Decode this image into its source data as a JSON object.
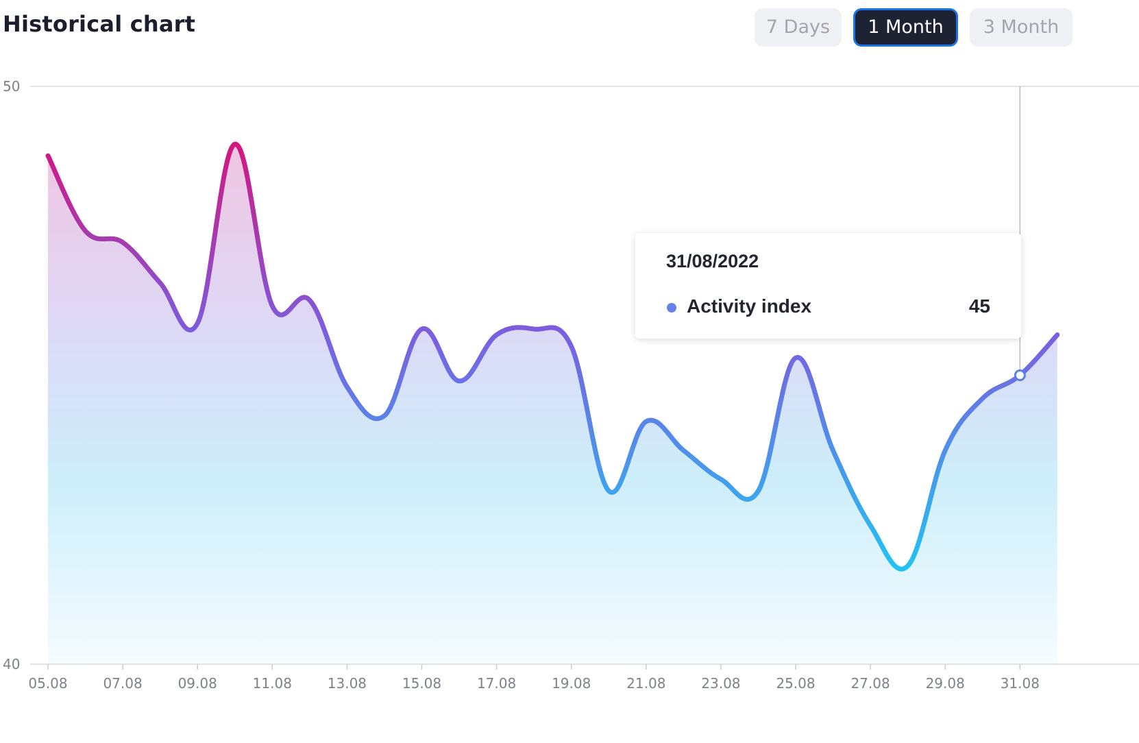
{
  "header": {
    "title": "Historical chart",
    "range_buttons": [
      {
        "label": "7 Days",
        "active": false
      },
      {
        "label": "1 Month",
        "active": true
      },
      {
        "label": "3 Month",
        "active": false
      }
    ]
  },
  "colors": {
    "line_start": "#d3167f",
    "line_mid": "#7a5fe0",
    "line_end": "#22c3f3",
    "button_active_bg": "#1d2333",
    "button_active_border": "#1a73e8"
  },
  "tooltip": {
    "date": "31/08/2022",
    "series_name": "Activity index",
    "value": "45"
  },
  "chart_data": {
    "type": "area",
    "title": "",
    "xlabel": "",
    "ylabel": "",
    "ylim": [
      40,
      50
    ],
    "y_ticks": [
      "50",
      "40"
    ],
    "x_tick_labels": [
      "05.08",
      "07.08",
      "09.08",
      "11.08",
      "13.08",
      "15.08",
      "17.08",
      "19.08",
      "21.08",
      "23.08",
      "25.08",
      "27.08",
      "29.08",
      "31.08"
    ],
    "grid": "horizontal top line only",
    "series": [
      {
        "name": "Activity index",
        "x": [
          "05.08",
          "06.08",
          "07.08",
          "08.08",
          "09.08",
          "10.08",
          "11.08",
          "12.08",
          "13.08",
          "14.08",
          "15.08",
          "16.08",
          "17.08",
          "18.08",
          "19.08",
          "20.08",
          "21.08",
          "22.08",
          "23.08",
          "24.08",
          "25.08",
          "26.08",
          "27.08",
          "28.08",
          "29.08",
          "30.08",
          "31.08",
          "01.09"
        ],
        "values": [
          48.8,
          47.5,
          47.3,
          46.6,
          45.9,
          49.0,
          46.2,
          46.3,
          44.8,
          44.3,
          45.8,
          44.9,
          45.7,
          45.8,
          45.5,
          43.0,
          44.2,
          43.7,
          43.2,
          43.0,
          45.3,
          43.7,
          42.4,
          41.7,
          43.7,
          44.6,
          45.0,
          45.7
        ]
      }
    ],
    "highlight": {
      "x": "31.08",
      "value": 45
    }
  }
}
